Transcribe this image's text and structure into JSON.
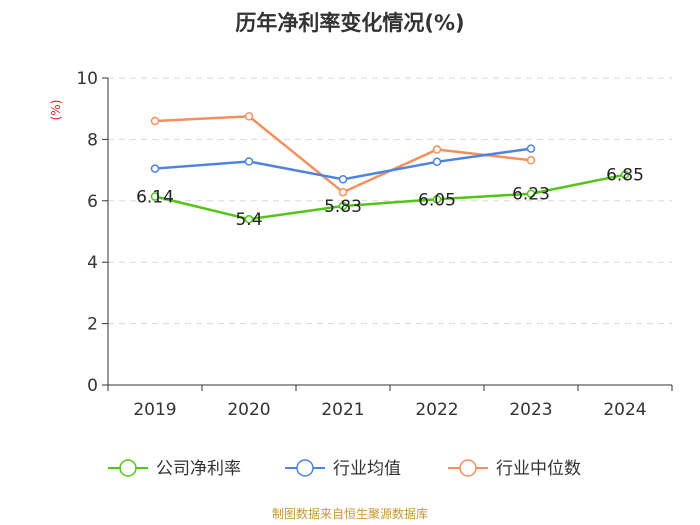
{
  "chart_data": {
    "type": "line",
    "title": "历年净利率变化情况(%)",
    "ylabel": "(%)",
    "xlabel": "",
    "ylim": [
      0,
      10
    ],
    "yticks": [
      0,
      2,
      4,
      6,
      8,
      10
    ],
    "grid": true,
    "legend_position": "bottom",
    "categories": [
      "2019",
      "2020",
      "2021",
      "2022",
      "2023",
      "2024"
    ],
    "series": [
      {
        "name": "公司净利率",
        "color": "#52c41a",
        "values": [
          6.14,
          5.4,
          5.83,
          6.05,
          6.23,
          6.85
        ],
        "labels": [
          "6.14",
          "5.4",
          "5.83",
          "6.05",
          "6.23",
          "6.85"
        ]
      },
      {
        "name": "行业均值",
        "color": "#4e83e0",
        "values": [
          7.05,
          7.28,
          6.7,
          7.27,
          7.7,
          null
        ]
      },
      {
        "name": "行业中位数",
        "color": "#f5905e",
        "values": [
          8.6,
          8.75,
          6.28,
          7.67,
          7.32,
          null
        ]
      }
    ]
  },
  "source_note": "制图数据来自恒生聚源数据库"
}
